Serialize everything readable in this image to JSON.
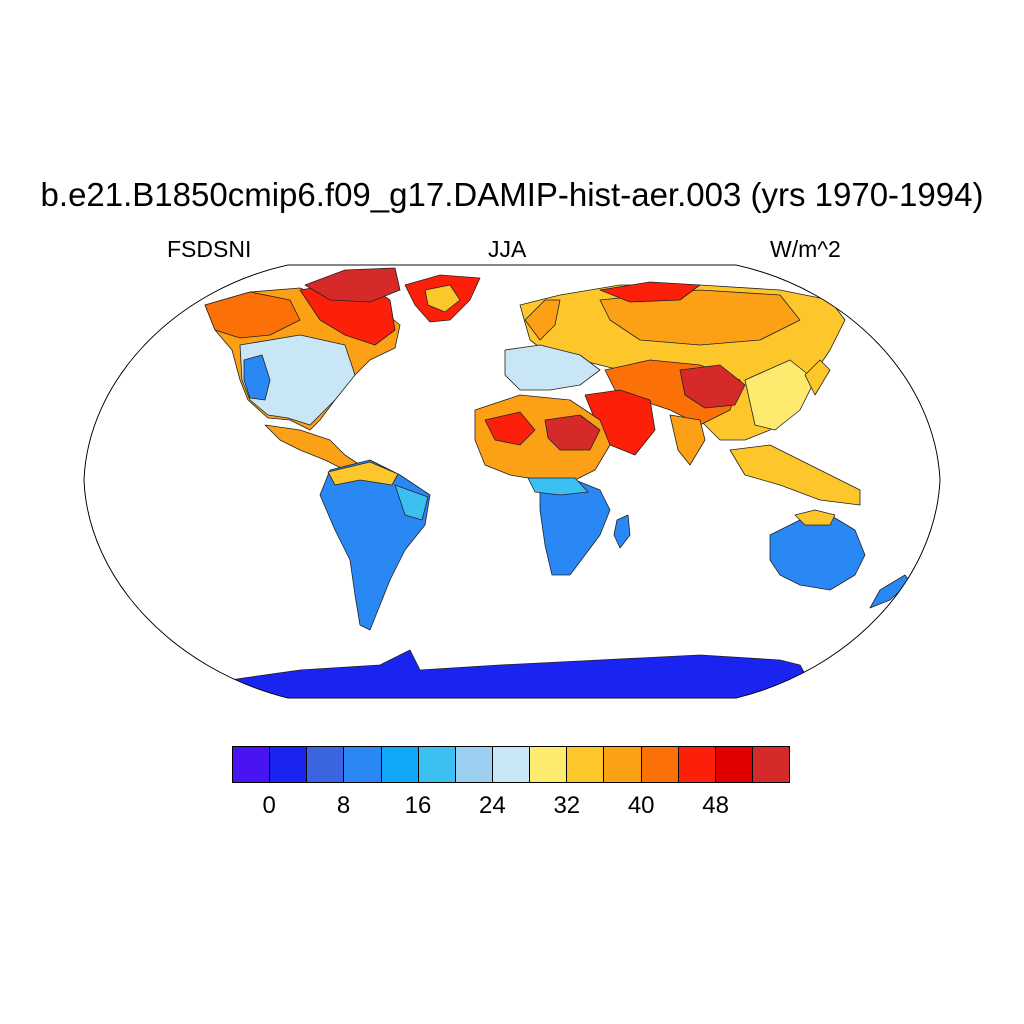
{
  "title": "b.e21.B1850cmip6.f09_g17.DAMIP-hist-aer.003 (yrs 1970-1994)",
  "subtitle_left": "FSDSNI",
  "subtitle_center": "JJA",
  "subtitle_right": "W/m^2",
  "colorbar": {
    "colors": [
      "#4a14f0",
      "#1a24f0",
      "#3b64e0",
      "#2a88f5",
      "#12a8f8",
      "#3cc0f2",
      "#9ccff0",
      "#c8e6f6",
      "#fdea6e",
      "#fdc62a",
      "#fca016",
      "#fc7008",
      "#fc200a",
      "#e00000",
      "#d62a2a"
    ],
    "labels": [
      "0",
      "8",
      "16",
      "24",
      "32",
      "40",
      "48"
    ],
    "label_values": [
      0,
      8,
      16,
      24,
      32,
      40,
      48
    ],
    "levels_min": -4,
    "level_step": 4
  }
}
